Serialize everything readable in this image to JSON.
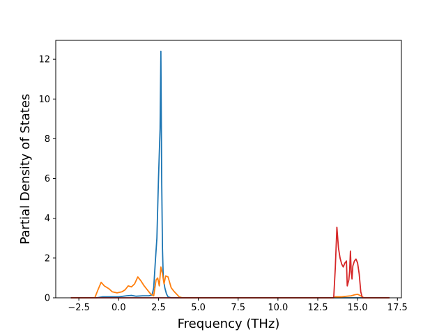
{
  "chart_data": {
    "type": "line",
    "title": "",
    "xlabel": "Frequency (THz)",
    "ylabel": "Partial Density of States",
    "xlim": [
      -3.95,
      17.75
    ],
    "ylim": [
      0,
      12.95
    ],
    "xticks": [
      -2.5,
      0.0,
      2.5,
      5.0,
      7.5,
      10.0,
      12.5,
      15.0,
      17.5
    ],
    "xtick_labels": [
      "−2.5",
      "0.0",
      "2.5",
      "5.0",
      "7.5",
      "10.0",
      "12.5",
      "15.0",
      "17.5"
    ],
    "yticks": [
      0,
      2,
      4,
      6,
      8,
      10,
      12
    ],
    "ytick_labels": [
      "0",
      "2",
      "4",
      "6",
      "8",
      "10",
      "12"
    ],
    "grid": false,
    "legend": false,
    "series": [
      {
        "color": "#1f77b4",
        "x": [
          -3.0,
          -1.4,
          -1.0,
          0.0,
          0.5,
          0.8,
          1.1,
          1.5,
          1.9,
          2.1,
          2.2,
          2.3,
          2.4,
          2.5,
          2.6,
          2.65,
          2.7,
          2.75,
          2.8,
          2.9,
          3.0,
          3.1,
          3.3,
          3.6,
          17.0
        ],
        "y": [
          0.0,
          0.0,
          0.05,
          0.05,
          0.1,
          0.12,
          0.08,
          0.1,
          0.1,
          0.15,
          0.5,
          1.8,
          3.0,
          6.0,
          8.5,
          12.4,
          6.0,
          2.5,
          1.0,
          0.5,
          0.2,
          0.05,
          0.0,
          0.0,
          0.0
        ]
      },
      {
        "color": "#ff7f0e",
        "x": [
          -3.0,
          -1.5,
          -1.3,
          -1.1,
          -0.9,
          -0.6,
          -0.4,
          -0.1,
          0.2,
          0.4,
          0.6,
          0.8,
          1.0,
          1.2,
          1.4,
          1.6,
          1.8,
          2.0,
          2.2,
          2.35,
          2.45,
          2.55,
          2.65,
          2.75,
          2.85,
          2.95,
          3.1,
          3.3,
          3.5,
          3.8,
          4.0,
          13.4,
          13.6,
          14.0,
          14.3,
          14.6,
          14.8,
          15.0,
          15.2,
          15.4,
          17.0
        ],
        "y": [
          0.0,
          0.0,
          0.4,
          0.78,
          0.6,
          0.45,
          0.3,
          0.25,
          0.3,
          0.4,
          0.6,
          0.55,
          0.7,
          1.05,
          0.85,
          0.6,
          0.4,
          0.2,
          0.1,
          0.9,
          1.0,
          0.6,
          1.55,
          1.2,
          0.7,
          1.1,
          1.05,
          0.5,
          0.3,
          0.05,
          0.0,
          0.0,
          0.05,
          0.05,
          0.08,
          0.1,
          0.15,
          0.18,
          0.1,
          0.0,
          0.0
        ]
      },
      {
        "color": "#d62728",
        "x": [
          -3.0,
          13.5,
          13.6,
          13.7,
          13.8,
          13.9,
          14.0,
          14.1,
          14.2,
          14.3,
          14.35,
          14.45,
          14.5,
          14.55,
          14.6,
          14.65,
          14.7,
          14.8,
          14.9,
          15.0,
          15.1,
          15.2,
          15.3,
          17.0
        ],
        "y": [
          0.0,
          0.0,
          1.5,
          3.55,
          2.5,
          2.0,
          1.7,
          1.55,
          1.75,
          1.85,
          0.6,
          0.9,
          1.35,
          2.35,
          1.3,
          0.95,
          1.6,
          1.85,
          1.95,
          1.75,
          1.2,
          0.3,
          0.0,
          0.0
        ]
      }
    ]
  }
}
